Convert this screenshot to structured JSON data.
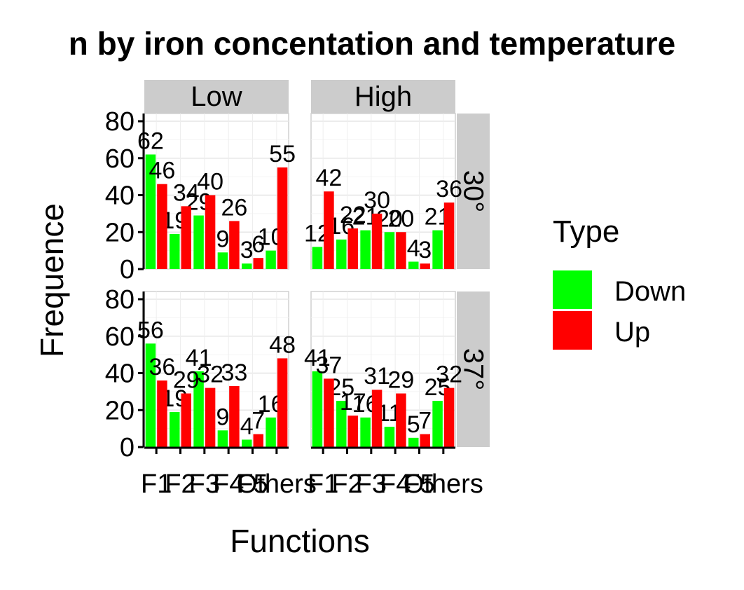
{
  "chart_data": {
    "type": "bar",
    "title": "n by iron concentation and temperature",
    "xlabel": "Functions",
    "ylabel": "Frequence",
    "categories": [
      "F1",
      "F2",
      "F3",
      "F4",
      "F5",
      "Others"
    ],
    "ylim": [
      0,
      80
    ],
    "yticks": [
      "0",
      "20",
      "40",
      "60",
      "80"
    ],
    "column_facets": [
      "Low",
      "High"
    ],
    "row_facets": [
      "30°",
      "37°"
    ],
    "legend": {
      "title": "Type",
      "position": "right",
      "entries": [
        {
          "name": "Down",
          "color": "#00ff00"
        },
        {
          "name": "Up",
          "color": "#ff0000"
        }
      ]
    },
    "grid": true,
    "panels": [
      {
        "column": "Low",
        "row": "30°",
        "series": [
          {
            "name": "Down",
            "values": [
              62,
              19,
              29,
              9,
              3,
              10
            ]
          },
          {
            "name": "Up",
            "values": [
              46,
              34,
              40,
              26,
              6,
              55
            ]
          }
        ]
      },
      {
        "column": "High",
        "row": "30°",
        "series": [
          {
            "name": "Down",
            "values": [
              12,
              16,
              21,
              20,
              4,
              21
            ]
          },
          {
            "name": "Up",
            "values": [
              42,
              22,
              30,
              20,
              3,
              36
            ]
          }
        ]
      },
      {
        "column": "Low",
        "row": "37°",
        "series": [
          {
            "name": "Down",
            "values": [
              56,
              19,
              41,
              9,
              4,
              16
            ]
          },
          {
            "name": "Up",
            "values": [
              36,
              29,
              32,
              33,
              7,
              48
            ]
          }
        ]
      },
      {
        "column": "High",
        "row": "37°",
        "series": [
          {
            "name": "Down",
            "values": [
              41,
              25,
              16,
              11,
              5,
              25
            ]
          },
          {
            "name": "Up",
            "values": [
              37,
              17,
              31,
              29,
              7,
              32
            ]
          }
        ]
      }
    ]
  }
}
